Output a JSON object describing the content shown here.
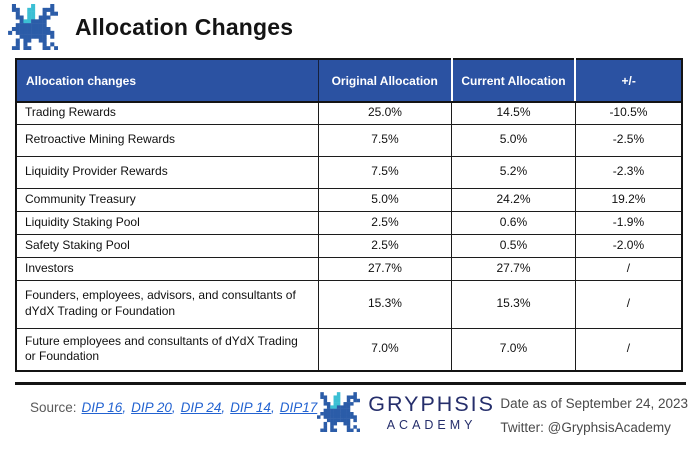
{
  "page": {
    "title": "Allocation Changes"
  },
  "table": {
    "headers": [
      "Allocation changes",
      "Original Allocation",
      "Current Allocation",
      "+/-"
    ],
    "rows": [
      {
        "name": "Trading Rewards",
        "original": "25.0%",
        "current": "14.5%",
        "change": "-10.5%"
      },
      {
        "name": "Retroactive Mining Rewards",
        "original": "7.5%",
        "current": "5.0%",
        "change": "-2.5%"
      },
      {
        "name": "Liquidity Provider Rewards",
        "original": "7.5%",
        "current": "5.2%",
        "change": "-2.3%"
      },
      {
        "name": "Community Treasury",
        "original": "5.0%",
        "current": "24.2%",
        "change": "19.2%"
      },
      {
        "name": "Liquidity Staking Pool",
        "original": "2.5%",
        "current": "0.6%",
        "change": "-1.9%"
      },
      {
        "name": "Safety Staking Pool",
        "original": "2.5%",
        "current": "0.5%",
        "change": "-2.0%"
      },
      {
        "name": "Investors",
        "original": "27.7%",
        "current": "27.7%",
        "change": "/"
      },
      {
        "name": "Founders, employees, advisors, and consultants of dYdX Trading or Foundation",
        "original": "15.3%",
        "current": "15.3%",
        "change": "/"
      },
      {
        "name": "Future employees and consultants of dYdX Trading or Foundation",
        "original": "7.0%",
        "current": "7.0%",
        "change": "/"
      }
    ]
  },
  "footer": {
    "source_label": "Source:",
    "source_links": [
      "DIP 16",
      "DIP 20",
      "DIP 24",
      "DIP 14",
      "DIP17"
    ],
    "brand_name": "GRYPHSIS",
    "brand_subtitle": "ACADEMY",
    "date_text": "Date as of September 24, 2023",
    "twitter_text": "Twitter: @GryphsisAcademy"
  },
  "icons": {
    "header_logo": "gryphsis-dragon-pixel-logo",
    "footer_logo": "gryphsis-dragon-pixel-logo"
  },
  "colors": {
    "header_bg": "#2B52A2",
    "link_blue": "#2363D1",
    "brand_navy": "#252E6B",
    "logo_blue": "#2B5CA8",
    "logo_teal": "#3BBFD4"
  }
}
